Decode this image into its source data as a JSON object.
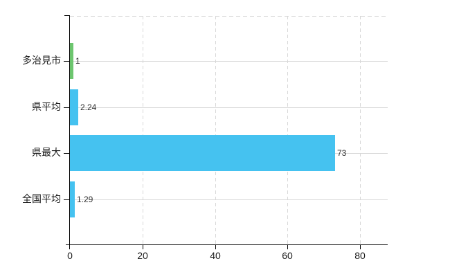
{
  "chart_data": {
    "type": "bar",
    "orientation": "horizontal",
    "title": "",
    "xlabel": "",
    "ylabel": "",
    "categories": [
      "多治見市",
      "県平均",
      "県最大",
      "全国平均"
    ],
    "values": [
      1,
      2.24,
      73,
      1.29
    ],
    "value_labels": [
      "1",
      "2.24",
      "73",
      "1.29"
    ],
    "bar_colors": [
      "#6dc66f",
      "#45c2f0",
      "#45c2f0",
      "#45c2f0"
    ],
    "x_ticks": [
      0,
      20,
      40,
      60,
      80
    ],
    "x_tick_labels": [
      "0",
      "20",
      "40",
      "60",
      "80"
    ],
    "xlim": [
      0,
      87.6
    ],
    "grid": "dashed vertical gridlines at ticks, solid horizontal line at each category center, dashed top border",
    "legend": false
  },
  "colors": {
    "background": "#ffffff",
    "axis_line": "#000000",
    "grid_line": "#d7d7d7",
    "tick_label_text": "#1a1a1a",
    "category_label_text": "#1a1a1a",
    "value_label_text": "#333333",
    "bar_blue": "#45c2f0",
    "bar_green": "#6dc66f"
  }
}
